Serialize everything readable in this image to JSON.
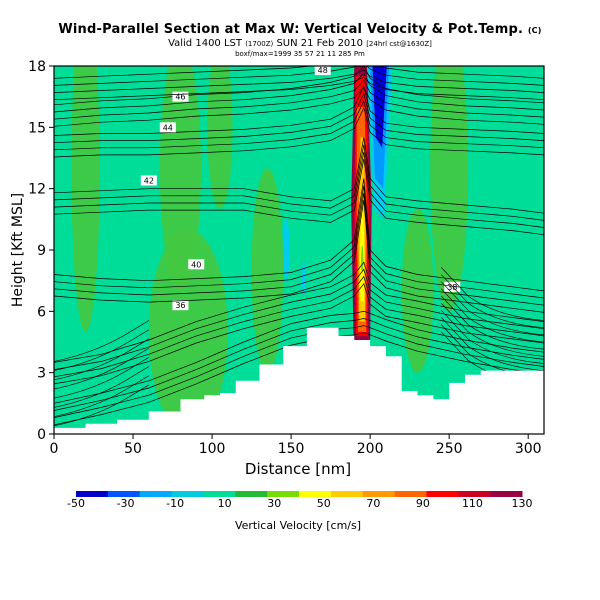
{
  "header": {
    "title": "Wind-Parallel Section at Max W: Vertical Velocity & Pot.Temp.",
    "title_suffix": "(C)",
    "subtitle": "Valid 1400 LST",
    "subtitle_small1": "(1700Z)",
    "subtitle_main2": "SUN 21 Feb 2010",
    "subtitle_small2": "[24hrl cst@1630Z]",
    "line3": "boxf/max=1999 35 57 21 11 285 Pm"
  },
  "chart_data": {
    "type": "heatmap",
    "xlabel": "Distance [nm]",
    "ylabel": "Height [Kft MSL]",
    "xlim": [
      0,
      310
    ],
    "ylim": [
      0,
      18
    ],
    "xticks": [
      0,
      50,
      100,
      150,
      200,
      250,
      300
    ],
    "yticks": [
      0,
      3,
      6,
      9,
      12,
      15,
      18
    ],
    "background_color": "#00dd99",
    "terrain_color": "#ffffff",
    "terrain": {
      "x": [
        0,
        20,
        40,
        60,
        80,
        95,
        105,
        115,
        130,
        145,
        160,
        170,
        180,
        190,
        200,
        210,
        220,
        230,
        240,
        250,
        260,
        270,
        280,
        290,
        300,
        310
      ],
      "height": [
        0.3,
        0.5,
        0.7,
        1.1,
        1.7,
        1.9,
        2.0,
        2.6,
        3.4,
        4.3,
        5.2,
        5.2,
        4.8,
        4.6,
        4.3,
        3.8,
        2.1,
        1.9,
        1.7,
        2.5,
        2.9,
        3.1,
        3.1,
        3.1,
        3.1,
        3.1
      ]
    },
    "updraft_core": {
      "x_center": 195,
      "levels": [
        {
          "value": 130,
          "color": "#990044"
        },
        {
          "value": 110,
          "color": "#ff0000"
        },
        {
          "value": 90,
          "color": "#ff6600"
        },
        {
          "value": 70,
          "color": "#ffcc00"
        },
        {
          "value": 50,
          "color": "#ffff00"
        },
        {
          "value": 30,
          "color": "#77dd00"
        }
      ]
    },
    "downdraft_band": {
      "x_center": 205,
      "levels": [
        {
          "value": -50,
          "color": "#0000dd"
        },
        {
          "value": -30,
          "color": "#0099ff"
        },
        {
          "value": -10,
          "color": "#00ccee"
        }
      ]
    },
    "theta_contours": [
      {
        "label": "36",
        "value": 36
      },
      {
        "label": "38",
        "value": 38
      },
      {
        "label": "40",
        "value": 40
      },
      {
        "label": "42",
        "value": 42
      },
      {
        "label": "44",
        "value": 44
      },
      {
        "label": "46",
        "value": 46
      },
      {
        "label": "48",
        "value": 48
      }
    ],
    "colorbar": {
      "label": "Vertical Velocity [cm/s]",
      "tick_labels": [
        "-50",
        "-30",
        "-10",
        "10",
        "30",
        "50",
        "70",
        "90",
        "110",
        "130"
      ],
      "colors": [
        "#0000cc",
        "#0055ff",
        "#00aaff",
        "#00ccdd",
        "#00dd99",
        "#22bb33",
        "#77dd00",
        "#ffff00",
        "#ffcc00",
        "#ff9900",
        "#ff6600",
        "#ff0000",
        "#cc0022",
        "#990044"
      ]
    }
  }
}
